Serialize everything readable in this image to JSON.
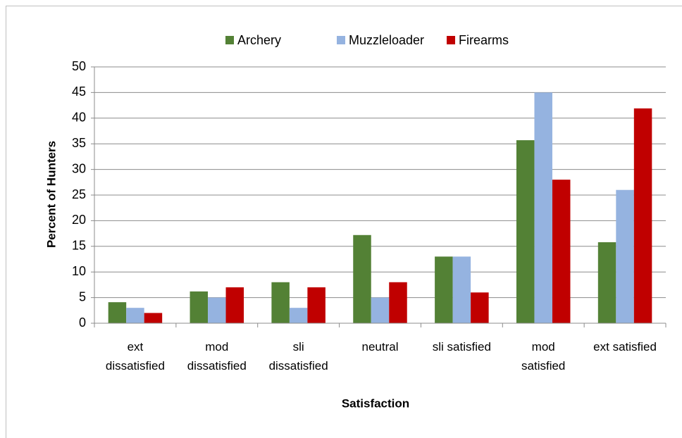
{
  "chart_data": {
    "type": "bar",
    "x_label": "Satisfaction",
    "y_label": "Percent of Hunters",
    "categories": [
      "ext\ndissatisfied",
      "mod\ndissatisfied",
      "sli\ndissatisfied",
      "neutral",
      "sli satisfied",
      "mod\nsatisfied",
      "ext satisfied"
    ],
    "series": [
      {
        "name": "Archery",
        "color": "#538135",
        "values": [
          4.1,
          6.2,
          8,
          17.2,
          13,
          35.7,
          15.8
        ]
      },
      {
        "name": "Muzzleloader",
        "color": "#95b3e0",
        "values": [
          3,
          5,
          3,
          5,
          13,
          45,
          26
        ]
      },
      {
        "name": "Firearms",
        "color": "#c00000",
        "values": [
          2,
          7,
          7,
          8,
          6,
          28,
          41.9
        ]
      }
    ],
    "ylim": [
      0,
      50
    ],
    "yticks": [
      0,
      5,
      10,
      15,
      20,
      25,
      30,
      35,
      40,
      45,
      50
    ],
    "grid": true,
    "legend": "top"
  }
}
